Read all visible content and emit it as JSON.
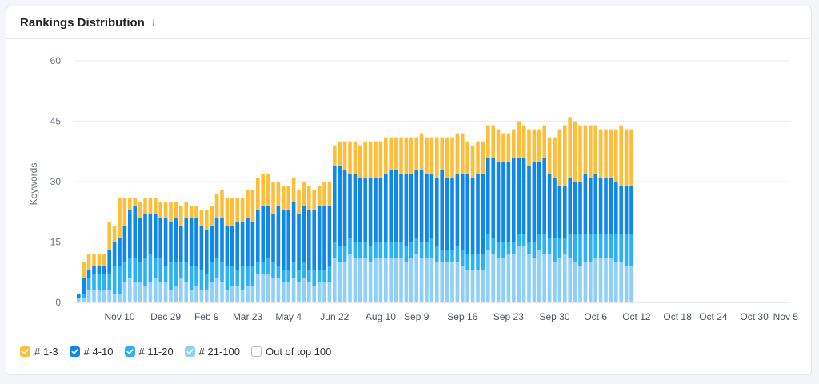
{
  "card": {
    "title": "Rankings Distribution",
    "info_icon": "info-icon",
    "info_glyph": "i"
  },
  "chart_data": {
    "type": "bar",
    "stacked": true,
    "ylabel": "Keywords",
    "ylim": [
      0,
      60
    ],
    "yticks": [
      0,
      15,
      30,
      45,
      60
    ],
    "xtick_labels": [
      {
        "label": "Nov 10",
        "index": 8
      },
      {
        "label": "Dec 29",
        "index": 17
      },
      {
        "label": "Feb 9",
        "index": 25
      },
      {
        "label": "Mar 23",
        "index": 33
      },
      {
        "label": "May 4",
        "index": 41
      },
      {
        "label": "Jun 22",
        "index": 50
      },
      {
        "label": "Aug 10",
        "index": 59
      },
      {
        "label": "Sep 9",
        "index": 66
      },
      {
        "label": "Sep 16",
        "index": 75
      },
      {
        "label": "Sep 23",
        "index": 84
      },
      {
        "label": "Sep 30",
        "index": 93
      },
      {
        "label": "Oct 6",
        "index": 101
      },
      {
        "label": "Oct 12",
        "index": 109
      },
      {
        "label": "Oct 18",
        "index": 117
      },
      {
        "label": "Oct 24",
        "index": 124
      },
      {
        "label": "Oct 30",
        "index": 132
      },
      {
        "label": "Nov 5",
        "index": 139
      }
    ],
    "series": [
      {
        "name": "# 21-100",
        "color": "#8fd0f9",
        "values": [
          1,
          1,
          3,
          3,
          3,
          3,
          3,
          2,
          2,
          5,
          6,
          5,
          5,
          4,
          5,
          6,
          5,
          5,
          3,
          4,
          6,
          5,
          3,
          4,
          3,
          3,
          5,
          6,
          5,
          3,
          4,
          4,
          3,
          4,
          4,
          7,
          7,
          7,
          6,
          6,
          5,
          5,
          6,
          5,
          6,
          5,
          4,
          5,
          5,
          5,
          11,
          10,
          10,
          12,
          11,
          11,
          11,
          10,
          11,
          11,
          11,
          11,
          11,
          11,
          10,
          11,
          12,
          11,
          11,
          11,
          10,
          10,
          10,
          10,
          10,
          9,
          8,
          8,
          8,
          8,
          13,
          12,
          11,
          11,
          12,
          12,
          14,
          14,
          12,
          11,
          13,
          12,
          12,
          10,
          11,
          12,
          11,
          10,
          9,
          10,
          10,
          11,
          11,
          11,
          11,
          10,
          10,
          9,
          9
        ]
      },
      {
        "name": "# 11-20",
        "color": "#2cb1f5",
        "values": [
          0,
          1,
          3,
          4,
          4,
          4,
          4,
          7,
          7,
          5,
          5,
          6,
          5,
          7,
          7,
          5,
          6,
          4,
          7,
          6,
          4,
          5,
          6,
          5,
          5,
          4,
          5,
          5,
          5,
          6,
          5,
          4,
          6,
          5,
          5,
          3,
          3,
          4,
          4,
          3,
          3,
          3,
          4,
          3,
          4,
          3,
          4,
          3,
          3,
          4,
          4,
          4,
          4,
          4,
          4,
          4,
          4,
          4,
          4,
          4,
          4,
          4,
          4,
          4,
          4,
          4,
          4,
          4,
          4,
          5,
          4,
          3,
          3,
          3,
          4,
          4,
          4,
          4,
          4,
          4,
          4,
          4,
          4,
          4,
          3,
          3,
          3,
          3,
          3,
          4,
          4,
          5,
          4,
          6,
          5,
          4,
          6,
          7,
          8,
          7,
          7,
          6,
          6,
          6,
          6,
          7,
          7,
          8,
          8
        ]
      },
      {
        "name": "# 4-10",
        "color": "#0f88e8",
        "values": [
          1,
          4,
          2,
          2,
          2,
          2,
          6,
          6,
          7,
          9,
          12,
          13,
          11,
          11,
          10,
          11,
          10,
          12,
          10,
          11,
          9,
          11,
          12,
          12,
          11,
          11,
          9,
          10,
          11,
          10,
          10,
          12,
          11,
          12,
          11,
          13,
          14,
          13,
          12,
          15,
          15,
          15,
          15,
          14,
          14,
          15,
          15,
          16,
          16,
          15,
          19,
          20,
          19,
          16,
          17,
          16,
          16,
          17,
          16,
          16,
          17,
          18,
          18,
          17,
          18,
          17,
          17,
          18,
          17,
          16,
          17,
          20,
          18,
          18,
          18,
          19,
          20,
          19,
          20,
          20,
          19,
          20,
          20,
          20,
          20,
          21,
          19,
          19,
          19,
          20,
          18,
          19,
          16,
          15,
          13,
          13,
          14,
          13,
          13,
          15,
          14,
          15,
          14,
          14,
          14,
          13,
          12,
          12,
          12
        ]
      },
      {
        "name": "# 1-3",
        "color": "#fdbf3b",
        "values": [
          0,
          4,
          4,
          3,
          3,
          3,
          7,
          4,
          10,
          7,
          3,
          2,
          4,
          4,
          4,
          4,
          4,
          4,
          5,
          4,
          5,
          4,
          3,
          3,
          4,
          5,
          5,
          6,
          7,
          7,
          7,
          6,
          6,
          7,
          8,
          8,
          8,
          8,
          8,
          6,
          6,
          6,
          6,
          6,
          6,
          6,
          5,
          5,
          6,
          6,
          5,
          6,
          7,
          8,
          8,
          8,
          9,
          9,
          9,
          9,
          9,
          8,
          8,
          9,
          9,
          9,
          8,
          9,
          9,
          9,
          10,
          8,
          10,
          10,
          10,
          10,
          8,
          8,
          8,
          8,
          8,
          8,
          8,
          7,
          7,
          7,
          9,
          8,
          9,
          8,
          8,
          8,
          9,
          10,
          14,
          15,
          15,
          15,
          14,
          12,
          13,
          12,
          12,
          12,
          12,
          13,
          15,
          14,
          14
        ]
      }
    ],
    "legend": [
      {
        "label": "# 1-3",
        "color": "#fdbf3b",
        "checked": true
      },
      {
        "label": "# 4-10",
        "color": "#0f88e8",
        "checked": true
      },
      {
        "label": "# 11-20",
        "color": "#2cb1f5",
        "checked": true
      },
      {
        "label": "# 21-100",
        "color": "#8fd0f9",
        "checked": true
      },
      {
        "label": "Out of top 100",
        "color": "#ffffff",
        "checked": false
      }
    ]
  }
}
